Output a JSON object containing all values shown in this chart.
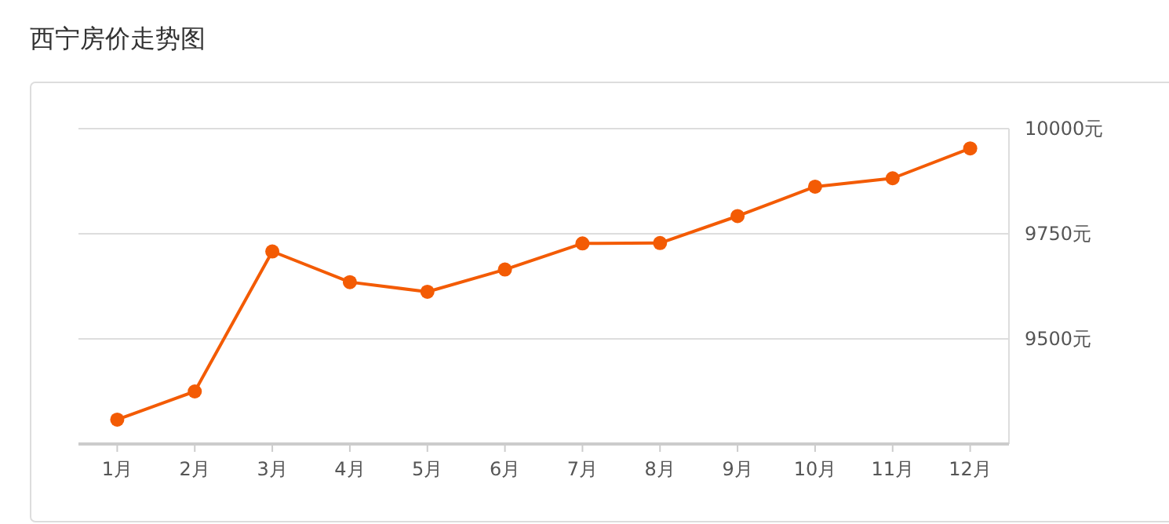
{
  "chart_data": {
    "type": "line",
    "title": "西宁房价走势图",
    "categories": [
      "1月",
      "2月",
      "3月",
      "4月",
      "5月",
      "6月",
      "7月",
      "8月",
      "9月",
      "10月",
      "11月",
      "12月"
    ],
    "series": [
      {
        "color": "#f35b04",
        "values": [
          9308,
          9375,
          9708,
          9635,
          9612,
          9665,
          9727,
          9728,
          9792,
          9862,
          9882,
          9953
        ]
      }
    ],
    "ylim": [
      9250,
      10000
    ],
    "yticks": [
      {
        "value": 9500,
        "label": "9500元"
      },
      {
        "value": 9750,
        "label": "9750元"
      },
      {
        "value": 10000,
        "label": "10000元"
      }
    ],
    "grid": "y",
    "marker": "circle",
    "line_style": "solid"
  }
}
